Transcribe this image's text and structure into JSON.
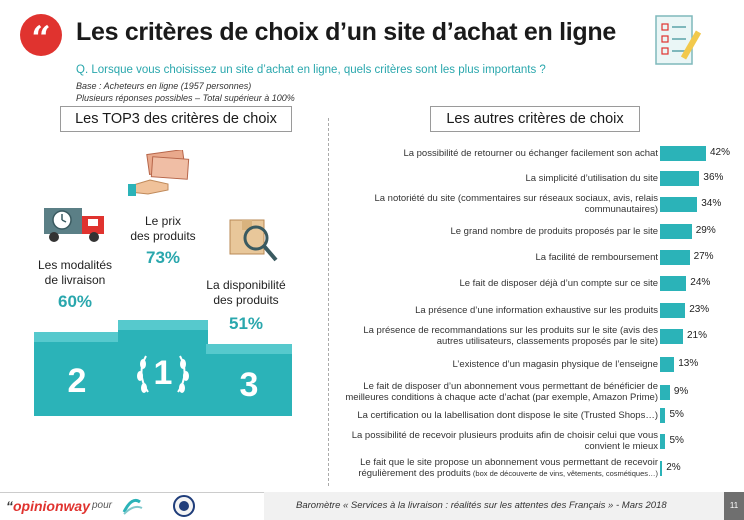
{
  "header": {
    "quote_mark": "“",
    "title": "Les critères de choix d’un site d’achat en ligne",
    "question": "Q. Lorsque vous choisissez un site d’achat en ligne, quels critères sont les plus importants ?",
    "base": "Base : Acheteurs en ligne (1957 personnes)",
    "multiple": "Plusieurs réponses possibles – Total supérieur à 100%"
  },
  "left": {
    "heading": "Les TOP3 des critères de choix",
    "podium": [
      {
        "rank": "2",
        "label_line1": "Les modalités",
        "label_line2": "de livraison",
        "value": "60%"
      },
      {
        "rank": "1",
        "label_line1": "Le prix",
        "label_line2": "des produits",
        "value": "73%"
      },
      {
        "rank": "3",
        "label_line1": "La disponibilité",
        "label_line2": "des produits",
        "value": "51%"
      }
    ]
  },
  "right": {
    "heading": "Les autres critères de choix"
  },
  "chart_data": {
    "type": "bar",
    "orientation": "horizontal",
    "categories": [
      [
        "La possibilité de retourner ou échanger facilement son achat"
      ],
      [
        "La simplicité d’utilisation du site"
      ],
      [
        "La notoriété du site (commentaires sur réseaux sociaux, avis, relais",
        "communautaires)"
      ],
      [
        "Le grand nombre de produits proposés par le site"
      ],
      [
        "La facilité de remboursement"
      ],
      [
        "Le fait de disposer déjà d’un compte sur ce site"
      ],
      [
        "La présence d’une information exhaustive sur les produits"
      ],
      [
        "La présence de recommandations sur les produits sur le site (avis des",
        "autres utilisateurs, classements proposés par le site)"
      ],
      [
        "L’existence d’un magasin physique de l’enseigne"
      ],
      [
        "Le fait de disposer d’un abonnement vous permettant de bénéficier de",
        "meilleures conditions à chaque acte d’achat (par exemple, Amazon Prime)"
      ],
      [
        "La certification ou la labellisation dont dispose le site (Trusted Shops…)"
      ],
      [
        "La possibilité de recevoir plusieurs produits afin de choisir celui que vous",
        "convient le mieux"
      ],
      [
        "Le fait que le site propose un abonnement vous permettant de recevoir",
        "régulièrement des produits"
      ]
    ],
    "category_notes": [
      "",
      "",
      "",
      "",
      "",
      "",
      "",
      "",
      "",
      "",
      "",
      "",
      "(box de découverte de vins, vêtements, cosmétiques…)"
    ],
    "values": [
      42,
      36,
      34,
      29,
      27,
      24,
      23,
      21,
      13,
      9,
      5,
      5,
      2
    ],
    "value_labels": [
      "42%",
      "36%",
      "34%",
      "29%",
      "27%",
      "24%",
      "23%",
      "21%",
      "13%",
      "9%",
      "5%",
      "5%",
      "2%"
    ],
    "unit": "%",
    "color": "#2bb3b8"
  },
  "footer": {
    "brand_quote": "“",
    "brand": "opinionway",
    "pour": "pour",
    "barometer": "Baromètre « Services à la livraison : réalités sur les attentes des Français » - Mars 2018",
    "page": "11"
  },
  "colors": {
    "accent": "#2bb3b8",
    "red": "#e0332f"
  }
}
